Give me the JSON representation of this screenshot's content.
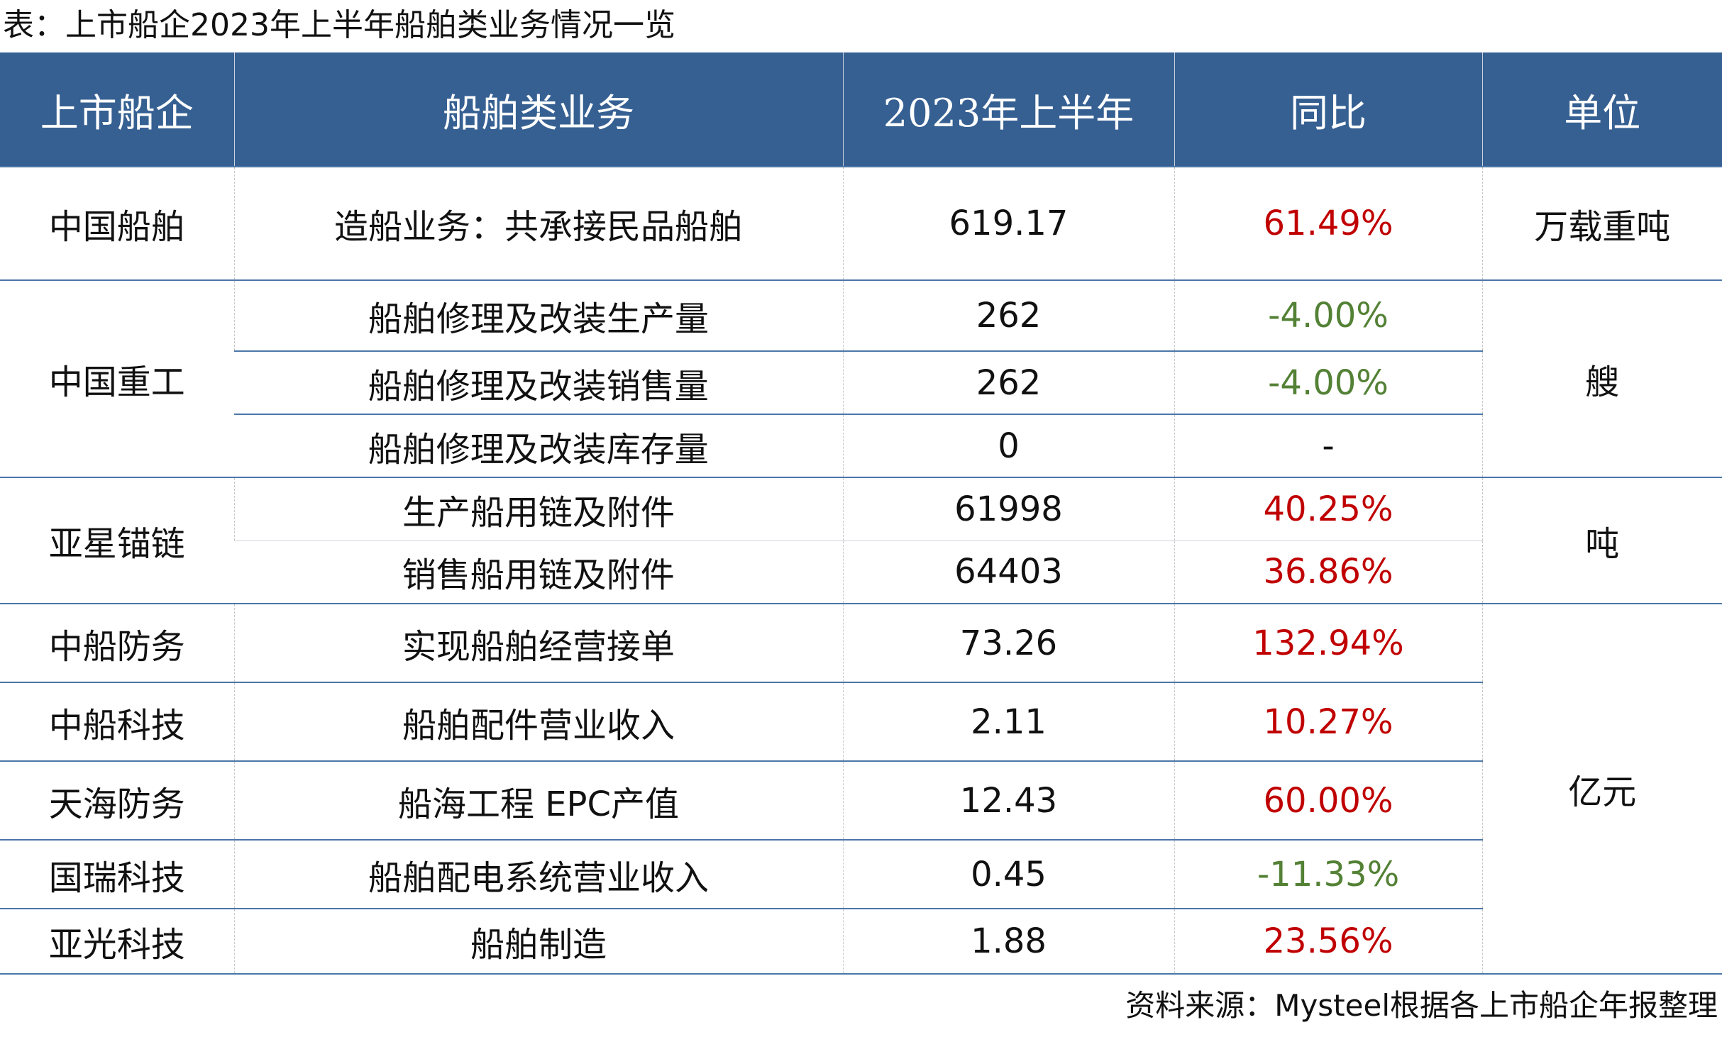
{
  "title": "表：上市船企2023年上半年船舶类业务情况一览",
  "source": "资料来源：Mysteel根据各上市船企年报整理",
  "colors": {
    "header_bg": "#366092",
    "header_text": "#ffffff",
    "increase": "#c00000",
    "decrease": "#538135",
    "rule": "#4a76a8"
  },
  "table": {
    "headers": [
      "上市船企",
      "船舶类业务",
      "2023年上半年",
      "同比",
      "单位"
    ],
    "groups": [
      {
        "company": "中国船舶",
        "unit": "万载重吨",
        "rows": [
          {
            "business": "造船业务：共承接民品船舶",
            "value": "619.17",
            "yoy": "61.49%",
            "trend": "up"
          }
        ]
      },
      {
        "company": "中国重工",
        "unit": "艘",
        "rows": [
          {
            "business": "船舶修理及改装生产量",
            "value": "262",
            "yoy": "-4.00%",
            "trend": "down"
          },
          {
            "business": "船舶修理及改装销售量",
            "value": "262",
            "yoy": "-4.00%",
            "trend": "down"
          },
          {
            "business": "船舶修理及改装库存量",
            "value": "0",
            "yoy": "-",
            "trend": "neutral"
          }
        ]
      },
      {
        "company": "亚星锚链",
        "unit": "吨",
        "rows": [
          {
            "business": "生产船用链及附件",
            "value": "61998",
            "yoy": "40.25%",
            "trend": "up"
          },
          {
            "business": "销售船用链及附件",
            "value": "64403",
            "yoy": "36.86%",
            "trend": "up"
          }
        ]
      },
      {
        "company": "中船防务",
        "unit": "亿元",
        "rows": [
          {
            "business": "实现船舶经营接单",
            "value": "73.26",
            "yoy": "132.94%",
            "trend": "up"
          }
        ]
      },
      {
        "company": "中船科技",
        "rows": [
          {
            "business": "船舶配件营业收入",
            "value": "2.11",
            "yoy": "10.27%",
            "trend": "up"
          }
        ]
      },
      {
        "company": "天海防务",
        "rows": [
          {
            "business": "船海工程 EPC产值",
            "value": "12.43",
            "yoy": "60.00%",
            "trend": "up"
          }
        ]
      },
      {
        "company": "国瑞科技",
        "rows": [
          {
            "business": "船舶配电系统营业收入",
            "value": "0.45",
            "yoy": "-11.33%",
            "trend": "down"
          }
        ]
      },
      {
        "company": "亚光科技",
        "rows": [
          {
            "business": "船舶制造",
            "value": "1.88",
            "yoy": "23.56%",
            "trend": "up"
          }
        ]
      }
    ]
  }
}
